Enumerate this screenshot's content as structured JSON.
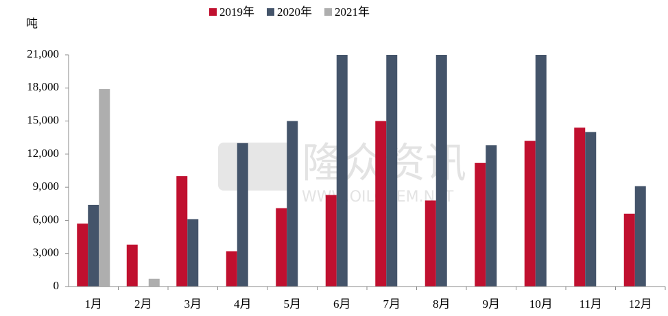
{
  "chart_data": {
    "type": "bar",
    "y_label": "吨",
    "watermark": {
      "brand": "隆众资讯",
      "url": "WWW.OILCHEM.NET"
    },
    "categories": [
      "1月",
      "2月",
      "3月",
      "4月",
      "5月",
      "6月",
      "7月",
      "8月",
      "9月",
      "10月",
      "11月",
      "12月"
    ],
    "series": [
      {
        "name": "2019年",
        "color": "#c0102f",
        "values": [
          5700,
          3800,
          10000,
          3200,
          7100,
          8300,
          15000,
          7800,
          11200,
          13200,
          14400,
          6600
        ]
      },
      {
        "name": "2020年",
        "color": "#44546a",
        "values": [
          7400,
          null,
          6100,
          13000,
          15000,
          21000,
          21000,
          21000,
          12800,
          21000,
          14000,
          9100
        ]
      },
      {
        "name": "2021年",
        "color": "#aeaeae",
        "values": [
          17900,
          700,
          null,
          null,
          null,
          null,
          null,
          null,
          null,
          null,
          null,
          null
        ]
      }
    ],
    "ylim": [
      0,
      21000
    ],
    "yticks": [
      0,
      {
        "value": 3000,
        "label": "3,000"
      },
      {
        "value": 6000,
        "label": "6,000"
      },
      {
        "value": 9000,
        "label": "9,000"
      },
      {
        "value": 12000,
        "label": "12,000"
      },
      {
        "value": 15000,
        "label": "15,000"
      },
      {
        "value": 18000,
        "label": "18,000"
      },
      {
        "value": 21000,
        "label": "21,000"
      }
    ],
    "grid": false,
    "legend": "top"
  }
}
